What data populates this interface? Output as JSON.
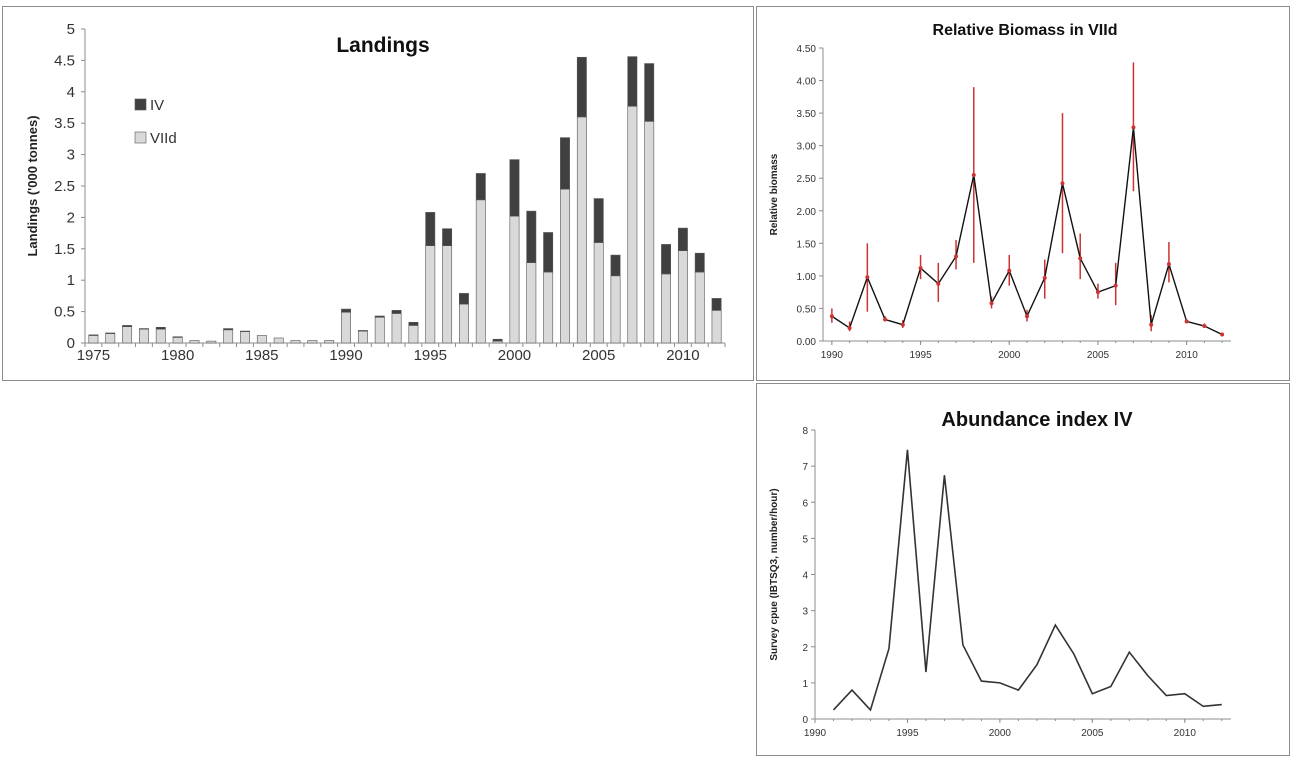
{
  "chart_data": [
    {
      "id": "landings",
      "type": "bar",
      "stacked": true,
      "title": "Landings",
      "xlabel": "",
      "ylabel": "Landings ('000 tonnes)",
      "ylim": [
        0,
        5
      ],
      "y_ticks": [
        "0",
        "0.5",
        "1",
        "1.5",
        "2",
        "2.5",
        "3",
        "3.5",
        "4",
        "4.5",
        "5"
      ],
      "x_tick_labels": [
        "1975",
        "1980",
        "1985",
        "1990",
        "1995",
        "2000",
        "2005",
        "2010"
      ],
      "legend_position": "top-left",
      "grid": false,
      "categories": [
        1975,
        1976,
        1977,
        1978,
        1979,
        1980,
        1981,
        1982,
        1983,
        1984,
        1985,
        1986,
        1987,
        1988,
        1989,
        1990,
        1991,
        1992,
        1993,
        1994,
        1995,
        1996,
        1997,
        1998,
        1999,
        2000,
        2001,
        2002,
        2003,
        2004,
        2005,
        2006,
        2007,
        2008,
        2009,
        2010,
        2011,
        2012
      ],
      "series": [
        {
          "name": "VIId",
          "color": "#d9d9d9",
          "values": [
            0.12,
            0.15,
            0.26,
            0.22,
            0.22,
            0.09,
            0.04,
            0.03,
            0.21,
            0.18,
            0.12,
            0.08,
            0.04,
            0.04,
            0.04,
            0.49,
            0.19,
            0.41,
            0.47,
            0.28,
            1.55,
            1.55,
            0.62,
            2.28,
            0.03,
            2.02,
            1.28,
            1.13,
            2.45,
            3.6,
            1.6,
            1.07,
            3.77,
            3.53,
            1.1,
            1.47,
            1.13,
            0.52
          ]
        },
        {
          "name": "IV",
          "color": "#404040",
          "values": [
            0.01,
            0.01,
            0.02,
            0.01,
            0.03,
            0.01,
            0.0,
            0.0,
            0.02,
            0.01,
            0.0,
            0.0,
            0.0,
            0.0,
            0.0,
            0.05,
            0.01,
            0.02,
            0.05,
            0.05,
            0.53,
            0.27,
            0.17,
            0.42,
            0.03,
            0.9,
            0.82,
            0.63,
            0.82,
            0.95,
            0.7,
            0.33,
            0.79,
            0.92,
            0.47,
            0.36,
            0.3,
            0.19
          ]
        }
      ]
    },
    {
      "id": "biomass",
      "type": "line",
      "title": "Relative Biomass in VIId",
      "xlabel": "",
      "ylabel": "Relative biomass",
      "ylim": [
        0,
        4.5
      ],
      "y_ticks": [
        "0.00",
        "0.50",
        "1.00",
        "1.50",
        "2.00",
        "2.50",
        "3.00",
        "3.50",
        "4.00",
        "4.50"
      ],
      "xlim": [
        1989.5,
        2012.5
      ],
      "x_ticks": [
        1990,
        1995,
        2000,
        2005,
        2010
      ],
      "grid": false,
      "line_color": "#111111",
      "error_color": "#cc3333",
      "x": [
        1990,
        1991,
        1992,
        1993,
        1994,
        1995,
        1996,
        1997,
        1998,
        1999,
        2000,
        2001,
        2002,
        2003,
        2004,
        2005,
        2006,
        2007,
        2008,
        2009,
        2010,
        2011,
        2012
      ],
      "y": [
        0.38,
        0.2,
        0.98,
        0.33,
        0.25,
        1.12,
        0.88,
        1.3,
        2.55,
        0.58,
        1.08,
        0.38,
        0.97,
        2.42,
        1.27,
        0.75,
        0.85,
        3.28,
        0.25,
        1.18,
        0.3,
        0.23,
        0.1
      ],
      "y_low": [
        0.28,
        0.15,
        0.45,
        0.3,
        0.2,
        0.95,
        0.6,
        1.1,
        1.2,
        0.5,
        0.85,
        0.3,
        0.65,
        1.35,
        0.95,
        0.65,
        0.55,
        2.3,
        0.15,
        0.9,
        0.28,
        0.2,
        0.08
      ],
      "y_high": [
        0.5,
        0.3,
        1.5,
        0.38,
        0.32,
        1.32,
        1.2,
        1.55,
        3.9,
        0.68,
        1.32,
        0.48,
        1.25,
        3.5,
        1.65,
        0.88,
        1.2,
        4.28,
        0.4,
        1.52,
        0.33,
        0.27,
        0.13
      ]
    },
    {
      "id": "abundance",
      "type": "line",
      "title": "Abundance index IV",
      "xlabel": "",
      "ylabel": "Survey cpue (IBTSQ3, number/hour)",
      "ylim": [
        0,
        8
      ],
      "y_ticks": [
        "0",
        "1",
        "2",
        "3",
        "4",
        "5",
        "6",
        "7",
        "8"
      ],
      "xlim": [
        1990,
        2012.5
      ],
      "x_ticks": [
        1990,
        1995,
        2000,
        2005,
        2010
      ],
      "grid": false,
      "line_color": "#333333",
      "x": [
        1991,
        1992,
        1993,
        1994,
        1995,
        1996,
        1997,
        1998,
        1999,
        2000,
        2001,
        2002,
        2003,
        2004,
        2005,
        2006,
        2007,
        2008,
        2009,
        2010,
        2011,
        2012
      ],
      "y": [
        0.25,
        0.8,
        0.25,
        1.95,
        7.45,
        1.3,
        6.75,
        2.05,
        1.05,
        1.0,
        0.8,
        1.5,
        2.6,
        1.8,
        0.7,
        0.9,
        1.85,
        1.2,
        0.65,
        0.7,
        0.35,
        0.4
      ]
    }
  ]
}
